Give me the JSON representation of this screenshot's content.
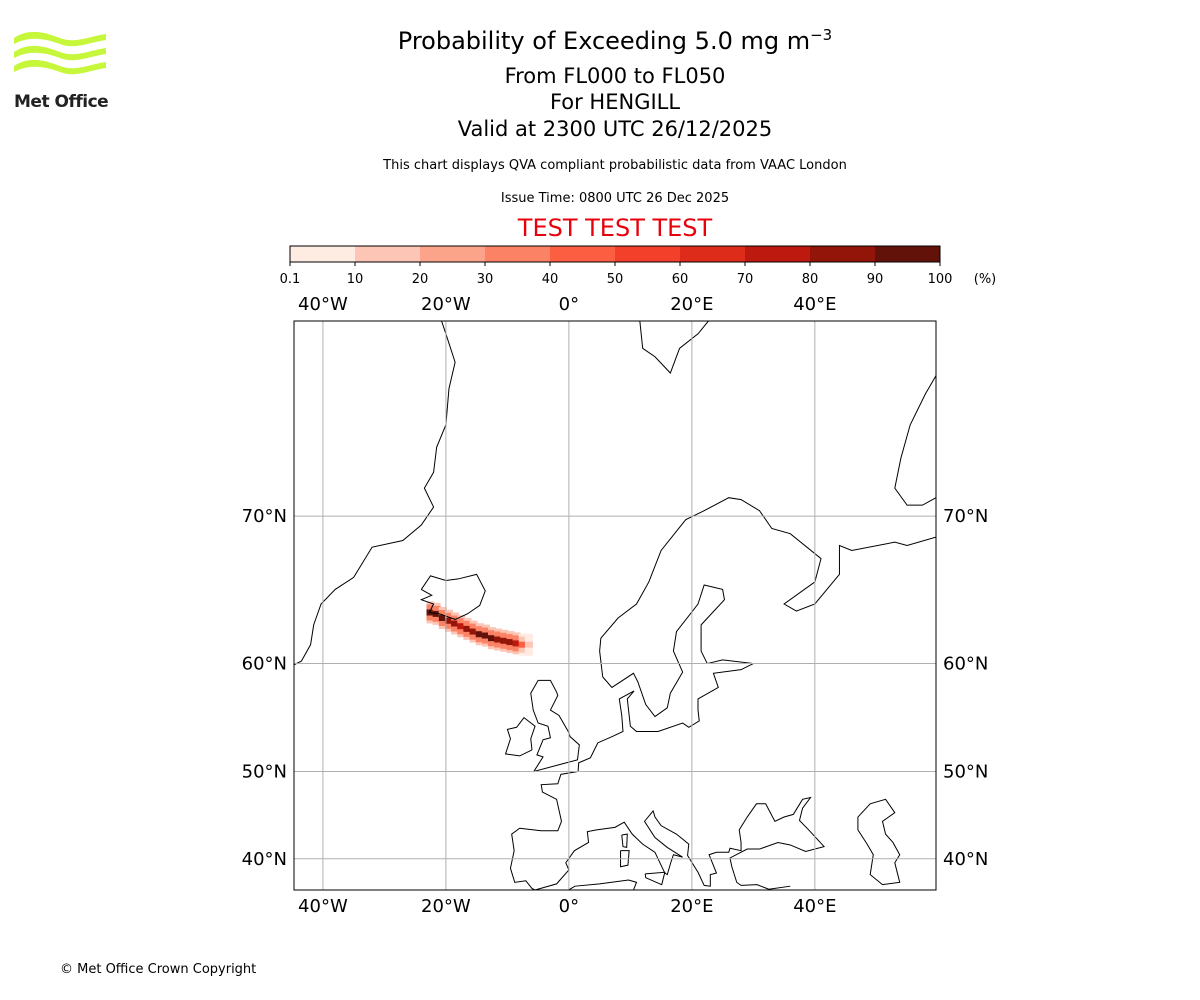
{
  "logo": {
    "text": "Met Office",
    "color": "#c6f73a"
  },
  "header": {
    "title_main": "Probability of Exceeding 5.0 mg m",
    "title_sup": "−3",
    "level_range": "From FL000 to FL050",
    "volcano": "For HENGILL",
    "valid_time": "Valid at 2300 UTC 26/12/2025",
    "subtitle": "This chart displays QVA compliant probabilistic data from VAAC London",
    "issue_time": "Issue Time: 0800 UTC 26 Dec 2025",
    "test_banner": "TEST TEST TEST",
    "test_color": "#e8000b"
  },
  "colorbar": {
    "ticks": [
      "0.1",
      "10",
      "20",
      "30",
      "40",
      "50",
      "60",
      "70",
      "80",
      "90",
      "100"
    ],
    "unit": "(%)",
    "colors": [
      "#feebe2",
      "#fcc5b5",
      "#fca48a",
      "#fc8266",
      "#fb5e40",
      "#f3402b",
      "#de2c1b",
      "#bd190e",
      "#931409",
      "#631209"
    ]
  },
  "chart_data": {
    "type": "heatmap",
    "projection": "mercator",
    "lon_range": [
      -44.7,
      59.7
    ],
    "lat_range": [
      36,
      78.5
    ],
    "lon_ticks": [
      {
        "value": -40,
        "label": "40°W"
      },
      {
        "value": -20,
        "label": "20°W"
      },
      {
        "value": 0,
        "label": "0°"
      },
      {
        "value": 20,
        "label": "20°E"
      },
      {
        "value": 40,
        "label": "40°E"
      }
    ],
    "lat_ticks": [
      {
        "value": 70,
        "label": "70°N"
      },
      {
        "value": 60,
        "label": "60°N"
      },
      {
        "value": 50,
        "label": "50°N"
      },
      {
        "value": 40,
        "label": "40°N"
      }
    ],
    "grid": true,
    "plume": [
      {
        "lon": -22.5,
        "lat": 63.9,
        "p": 95
      },
      {
        "lon": -21.5,
        "lat": 63.8,
        "p": 95
      },
      {
        "lon": -20.5,
        "lat": 63.5,
        "p": 90
      },
      {
        "lon": -19.5,
        "lat": 63.3,
        "p": 85
      },
      {
        "lon": -18.5,
        "lat": 63.1,
        "p": 80
      },
      {
        "lon": -17.5,
        "lat": 62.9,
        "p": 75
      },
      {
        "lon": -16.5,
        "lat": 62.7,
        "p": 80
      },
      {
        "lon": -15.5,
        "lat": 62.5,
        "p": 85
      },
      {
        "lon": -14.5,
        "lat": 62.3,
        "p": 90
      },
      {
        "lon": -13.5,
        "lat": 62.2,
        "p": 95
      },
      {
        "lon": -12.5,
        "lat": 62.0,
        "p": 90
      },
      {
        "lon": -11.5,
        "lat": 61.9,
        "p": 85
      },
      {
        "lon": -10.5,
        "lat": 61.8,
        "p": 80
      },
      {
        "lon": -9.5,
        "lat": 61.7,
        "p": 85
      },
      {
        "lon": -8.5,
        "lat": 61.6,
        "p": 75
      },
      {
        "lon": -7.5,
        "lat": 61.5,
        "p": 40
      },
      {
        "lon": -6.5,
        "lat": 61.5,
        "p": 15
      }
    ]
  },
  "footer": {
    "copyright": "© Met Office Crown Copyright"
  }
}
